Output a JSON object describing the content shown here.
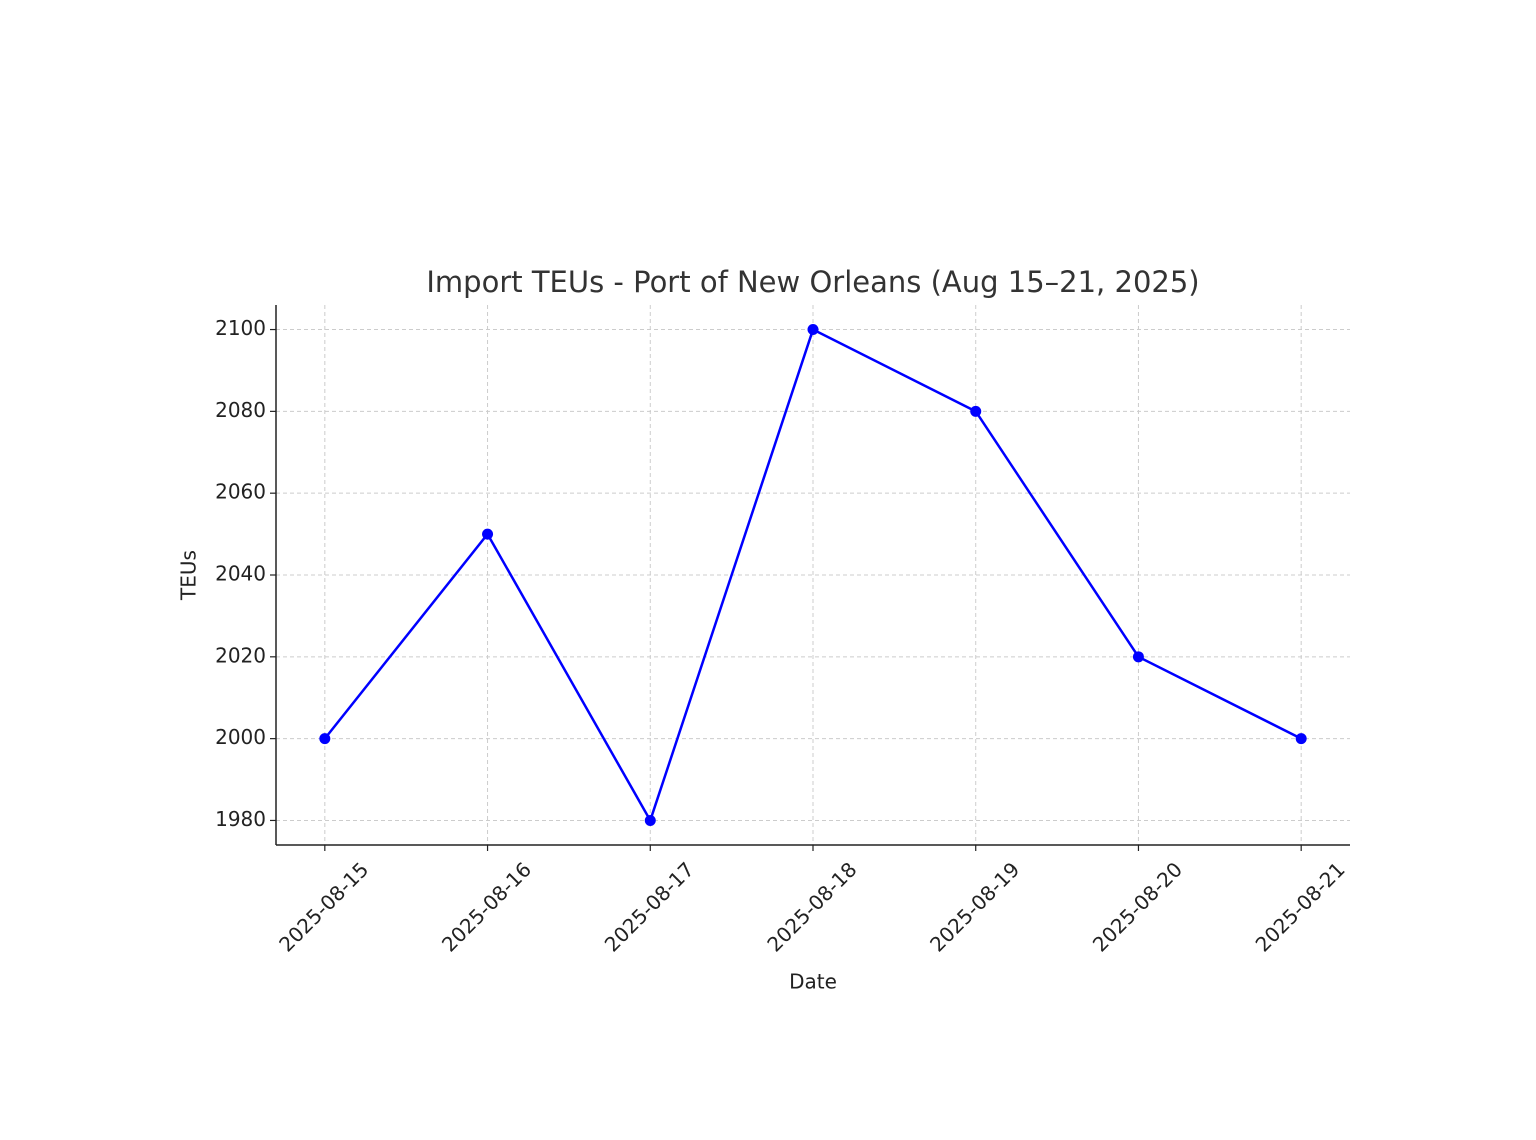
{
  "chart_data": {
    "type": "line",
    "title": "Import TEUs - Port of New Orleans (Aug 15–21, 2025)",
    "x_label": "Date",
    "y_label": "TEUs",
    "x": [
      "2025-08-15",
      "2025-08-16",
      "2025-08-17",
      "2025-08-18",
      "2025-08-19",
      "2025-08-20",
      "2025-08-21"
    ],
    "values": [
      2000,
      2050,
      1980,
      2100,
      2080,
      2020,
      2000
    ],
    "color": "#0000ff",
    "marker": true,
    "ylim": [
      1974,
      2106
    ],
    "yticks": [
      1980,
      2000,
      2020,
      2040,
      2060,
      2080,
      2100
    ],
    "grid": true
  }
}
